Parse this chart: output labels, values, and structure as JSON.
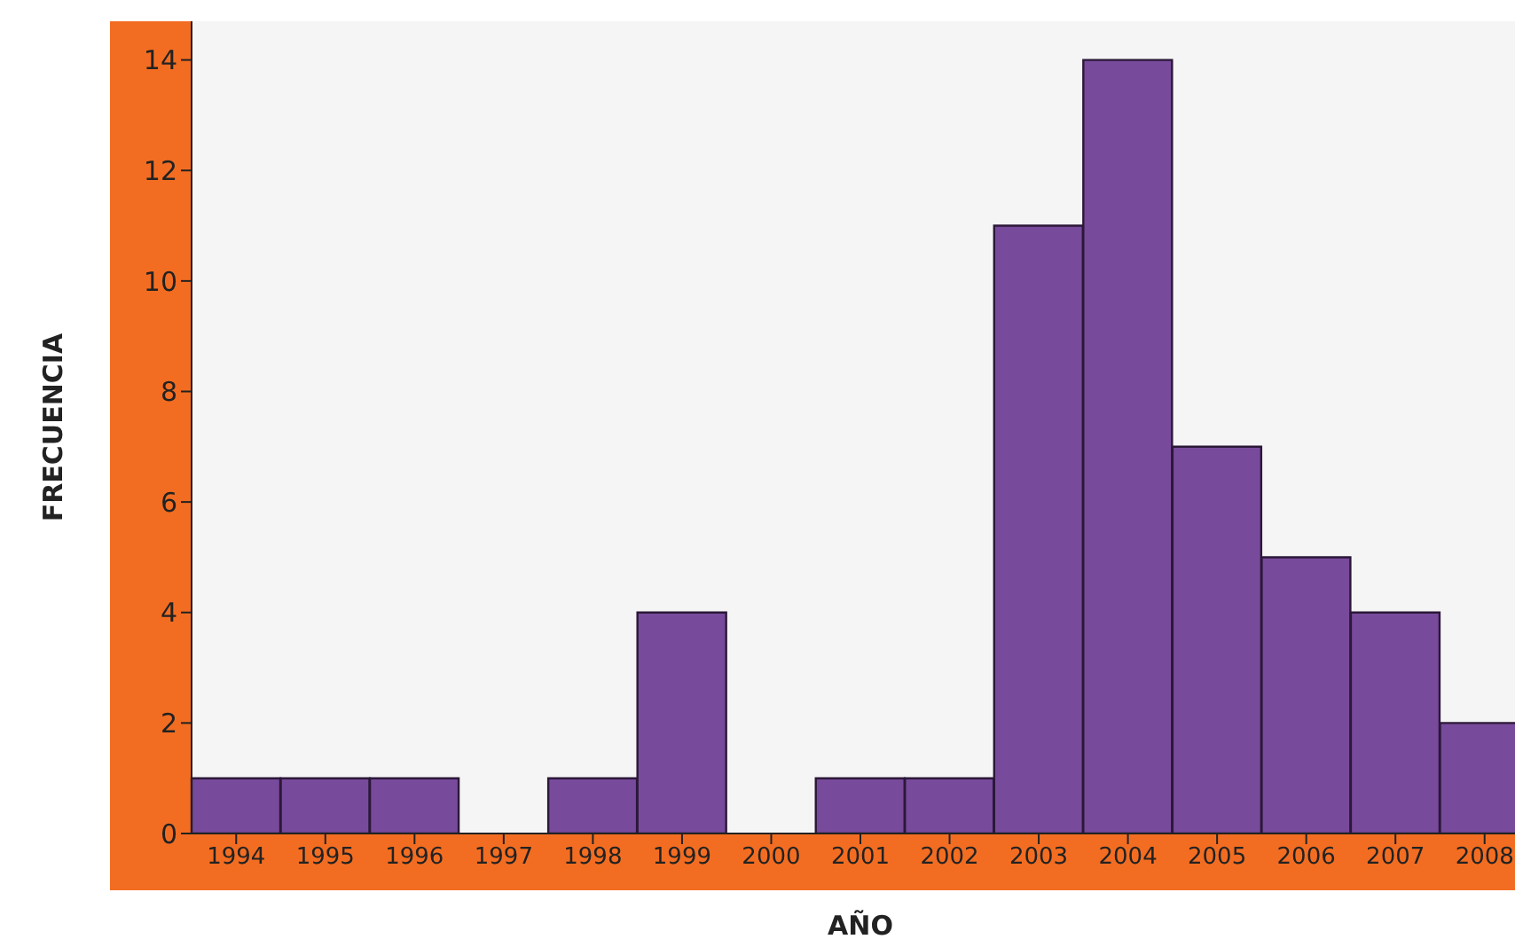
{
  "chart_data": {
    "type": "bar",
    "xlabel": "AÑO",
    "ylabel": "FRECUENCIA",
    "categories": [
      "1994",
      "1995",
      "1996",
      "1997",
      "1998",
      "1999",
      "2000",
      "2001",
      "2002",
      "2003",
      "2004",
      "2005",
      "2006",
      "2007",
      "2008"
    ],
    "values": [
      1,
      1,
      1,
      0,
      1,
      4,
      0,
      1,
      1,
      11,
      14,
      7,
      5,
      4,
      2
    ],
    "color": "#784a9b",
    "ylim": [
      0,
      14.7
    ],
    "yticks": [
      0,
      2,
      4,
      6,
      8,
      10,
      12,
      14
    ],
    "grid": false,
    "legend": false
  }
}
